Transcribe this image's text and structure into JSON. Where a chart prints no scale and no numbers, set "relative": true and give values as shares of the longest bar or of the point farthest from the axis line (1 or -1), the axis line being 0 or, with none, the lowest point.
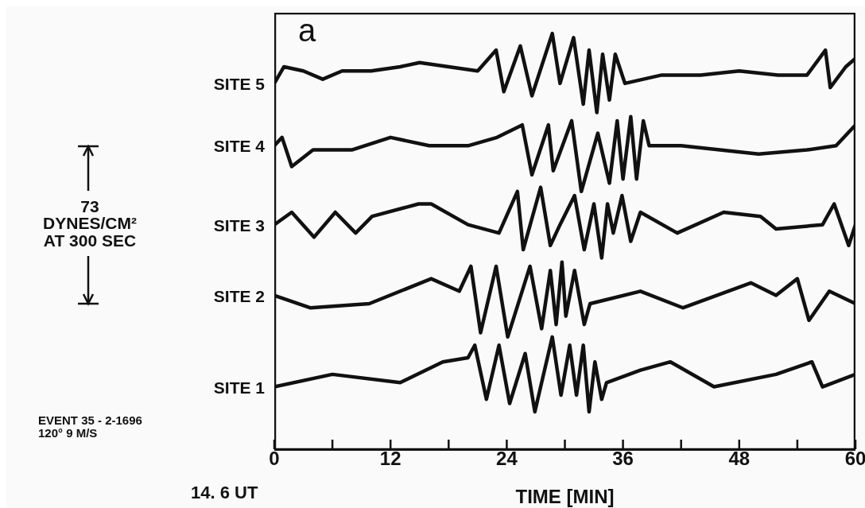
{
  "chart_data": {
    "type": "line",
    "relative": true,
    "xlabel": "TIME [MIN]",
    "xlim": [
      0,
      60
    ],
    "xticks": [
      0,
      {
        "value": 6,
        "label": null
      },
      12,
      {
        "value": 18,
        "label": null
      },
      24,
      {
        "value": 30,
        "label": null
      },
      36,
      {
        "value": 42,
        "label": null
      },
      48,
      {
        "value": 54,
        "label": null
      },
      60
    ],
    "marker": "none",
    "line_style": "solid",
    "grid": false,
    "legend": false,
    "annotations": [
      "a",
      "73",
      "DYNES/CM²",
      "AT 300 SEC",
      "EVENT 35 - 2-1696",
      "120° 9 M/S",
      "14. 6 UT"
    ],
    "series": [
      {
        "name": "SITE 5",
        "color": "#111111",
        "x": [
          0,
          1,
          3,
          5,
          7,
          10,
          13,
          15,
          18,
          21,
          22.9,
          23.7,
          25.4,
          26.6,
          28.7,
          29.5,
          30.9,
          31.9,
          32.5,
          33.3,
          33.9,
          34.6,
          35.2,
          36.2,
          40,
          44,
          48,
          52,
          55,
          56.9,
          57.4,
          59,
          60
        ],
        "values": [
          0.88,
          0.92,
          0.91,
          0.89,
          0.91,
          0.91,
          0.92,
          0.93,
          0.92,
          0.91,
          0.96,
          0.86,
          0.97,
          0.85,
          1.0,
          0.88,
          0.99,
          0.83,
          0.96,
          0.81,
          0.95,
          0.84,
          0.95,
          0.88,
          0.9,
          0.9,
          0.91,
          0.9,
          0.9,
          0.96,
          0.87,
          0.92,
          0.94
        ]
      },
      {
        "name": "SITE 4",
        "color": "#111111",
        "x": [
          0,
          0.8,
          1.8,
          4,
          8,
          12,
          16,
          20,
          23,
          25.6,
          26.6,
          28.3,
          28.8,
          30.7,
          31.7,
          33.4,
          34.6,
          35.4,
          36.0,
          36.8,
          37.4,
          38.1,
          38.7,
          42,
          46,
          50,
          55,
          58,
          60
        ],
        "values": [
          0.73,
          0.75,
          0.68,
          0.72,
          0.72,
          0.75,
          0.73,
          0.73,
          0.75,
          0.78,
          0.66,
          0.78,
          0.67,
          0.79,
          0.62,
          0.76,
          0.64,
          0.79,
          0.65,
          0.8,
          0.65,
          0.79,
          0.73,
          0.73,
          0.72,
          0.71,
          0.72,
          0.73,
          0.78
        ]
      },
      {
        "name": "SITE 3",
        "color": "#111111",
        "x": [
          0,
          1.8,
          4.1,
          6.3,
          8.4,
          10.1,
          14.9,
          16.2,
          20,
          23.2,
          25.1,
          25.7,
          27.5,
          28.5,
          29.5,
          31.0,
          32,
          33,
          33.8,
          34.4,
          35,
          35.9,
          36.8,
          37.8,
          41.6,
          46.4,
          50.2,
          51.8,
          56.6,
          57.8,
          59.3,
          60
        ],
        "values": [
          0.54,
          0.57,
          0.51,
          0.57,
          0.52,
          0.56,
          0.59,
          0.59,
          0.54,
          0.52,
          0.62,
          0.48,
          0.63,
          0.49,
          0.54,
          0.61,
          0.48,
          0.59,
          0.46,
          0.59,
          0.52,
          0.61,
          0.5,
          0.57,
          0.52,
          0.57,
          0.56,
          0.53,
          0.54,
          0.59,
          0.49,
          0.54
        ]
      },
      {
        "name": "SITE 2",
        "color": "#111111",
        "x": [
          0,
          3.7,
          9.8,
          16.2,
          19.1,
          20.3,
          21.3,
          22.9,
          24.1,
          26.4,
          27.6,
          28.5,
          29.1,
          29.7,
          30.1,
          31,
          32,
          32.6,
          37.8,
          42.2,
          49.2,
          51.8,
          54,
          55.2,
          57.3,
          60
        ],
        "values": [
          0.37,
          0.34,
          0.35,
          0.41,
          0.38,
          0.44,
          0.28,
          0.44,
          0.27,
          0.44,
          0.29,
          0.43,
          0.3,
          0.45,
          0.32,
          0.43,
          0.3,
          0.35,
          0.38,
          0.34,
          0.4,
          0.37,
          0.41,
          0.31,
          0.38,
          0.35
        ]
      },
      {
        "name": "SITE 1",
        "color": "#111111",
        "x": [
          0,
          6,
          13,
          17.4,
          20,
          20.7,
          21.9,
          23.2,
          24.3,
          25.9,
          26.9,
          28.7,
          29.6,
          30.5,
          31.2,
          31.9,
          32.5,
          33.1,
          33.8,
          34.3,
          37.8,
          40.9,
          45.4,
          51.8,
          55.5,
          56.6,
          60
        ],
        "values": [
          0.15,
          0.18,
          0.16,
          0.21,
          0.22,
          0.25,
          0.12,
          0.25,
          0.11,
          0.23,
          0.09,
          0.27,
          0.13,
          0.25,
          0.13,
          0.25,
          0.09,
          0.21,
          0.12,
          0.16,
          0.19,
          0.21,
          0.15,
          0.18,
          0.21,
          0.15,
          0.18
        ]
      }
    ]
  }
}
